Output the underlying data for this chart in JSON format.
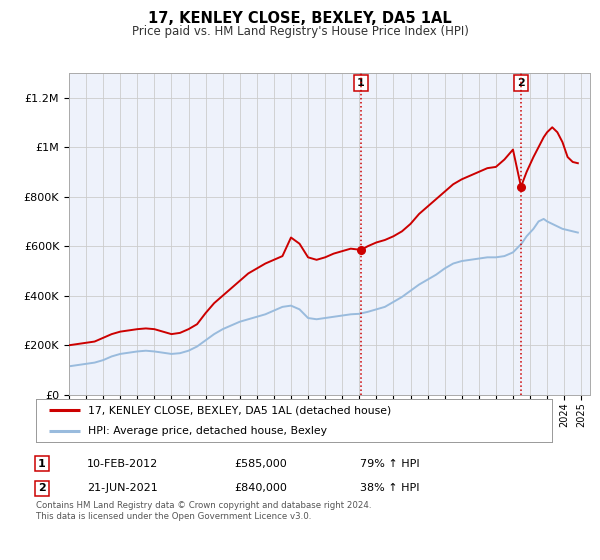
{
  "title": "17, KENLEY CLOSE, BEXLEY, DA5 1AL",
  "subtitle": "Price paid vs. HM Land Registry's House Price Index (HPI)",
  "ylim": [
    0,
    1300000
  ],
  "xlim_start": 1995.0,
  "xlim_end": 2025.5,
  "yticks": [
    0,
    200000,
    400000,
    600000,
    800000,
    1000000,
    1200000
  ],
  "ytick_labels": [
    "£0",
    "£200K",
    "£400K",
    "£600K",
    "£800K",
    "£1M",
    "£1.2M"
  ],
  "red_line_color": "#cc0000",
  "blue_line_color": "#99bbdd",
  "marker_color": "#cc0000",
  "annotation_color": "#cc0000",
  "grid_color": "#cccccc",
  "background_color": "#eef2fb",
  "legend_label_red": "17, KENLEY CLOSE, BEXLEY, DA5 1AL (detached house)",
  "legend_label_blue": "HPI: Average price, detached house, Bexley",
  "sale1_date": "10-FEB-2012",
  "sale1_price": "£585,000",
  "sale1_pct": "79% ↑ HPI",
  "sale1_x": 2012.1,
  "sale1_y": 585000,
  "sale2_date": "21-JUN-2021",
  "sale2_price": "£840,000",
  "sale2_pct": "38% ↑ HPI",
  "sale2_x": 2021.47,
  "sale2_y": 840000,
  "footer_line1": "Contains HM Land Registry data © Crown copyright and database right 2024.",
  "footer_line2": "This data is licensed under the Open Government Licence v3.0.",
  "red_x": [
    1995.0,
    1995.5,
    1996.0,
    1996.5,
    1997.0,
    1997.5,
    1998.0,
    1998.5,
    1999.0,
    1999.5,
    2000.0,
    2000.5,
    2001.0,
    2001.5,
    2002.0,
    2002.5,
    2003.0,
    2003.5,
    2004.0,
    2004.5,
    2005.0,
    2005.5,
    2006.0,
    2006.5,
    2007.0,
    2007.5,
    2008.0,
    2008.5,
    2009.0,
    2009.5,
    2010.0,
    2010.5,
    2011.0,
    2011.5,
    2012.1,
    2012.5,
    2013.0,
    2013.5,
    2014.0,
    2014.5,
    2015.0,
    2015.5,
    2016.0,
    2016.5,
    2017.0,
    2017.5,
    2018.0,
    2018.5,
    2019.0,
    2019.5,
    2020.0,
    2020.5,
    2021.0,
    2021.47,
    2021.8,
    2022.2,
    2022.5,
    2022.8,
    2023.0,
    2023.3,
    2023.6,
    2023.9,
    2024.2,
    2024.5,
    2024.8
  ],
  "red_y": [
    200000,
    205000,
    210000,
    215000,
    230000,
    245000,
    255000,
    260000,
    265000,
    268000,
    265000,
    255000,
    245000,
    250000,
    265000,
    285000,
    330000,
    370000,
    400000,
    430000,
    460000,
    490000,
    510000,
    530000,
    545000,
    560000,
    635000,
    610000,
    555000,
    545000,
    555000,
    570000,
    580000,
    590000,
    585000,
    600000,
    615000,
    625000,
    640000,
    660000,
    690000,
    730000,
    760000,
    790000,
    820000,
    850000,
    870000,
    885000,
    900000,
    915000,
    920000,
    950000,
    990000,
    840000,
    900000,
    960000,
    1000000,
    1040000,
    1060000,
    1080000,
    1060000,
    1020000,
    960000,
    940000,
    935000
  ],
  "blue_x": [
    1995.0,
    1995.5,
    1996.0,
    1996.5,
    1997.0,
    1997.5,
    1998.0,
    1998.5,
    1999.0,
    1999.5,
    2000.0,
    2000.5,
    2001.0,
    2001.5,
    2002.0,
    2002.5,
    2003.0,
    2003.5,
    2004.0,
    2004.5,
    2005.0,
    2005.5,
    2006.0,
    2006.5,
    2007.0,
    2007.5,
    2008.0,
    2008.5,
    2009.0,
    2009.5,
    2010.0,
    2010.5,
    2011.0,
    2011.5,
    2012.0,
    2012.5,
    2013.0,
    2013.5,
    2014.0,
    2014.5,
    2015.0,
    2015.5,
    2016.0,
    2016.5,
    2017.0,
    2017.5,
    2018.0,
    2018.5,
    2019.0,
    2019.5,
    2020.0,
    2020.5,
    2021.0,
    2021.5,
    2021.8,
    2022.2,
    2022.5,
    2022.8,
    2023.0,
    2023.3,
    2023.6,
    2023.9,
    2024.2,
    2024.5,
    2024.8
  ],
  "blue_y": [
    115000,
    120000,
    125000,
    130000,
    140000,
    155000,
    165000,
    170000,
    175000,
    178000,
    175000,
    170000,
    165000,
    168000,
    178000,
    195000,
    220000,
    245000,
    265000,
    280000,
    295000,
    305000,
    315000,
    325000,
    340000,
    355000,
    360000,
    345000,
    310000,
    305000,
    310000,
    315000,
    320000,
    325000,
    327000,
    335000,
    345000,
    355000,
    375000,
    395000,
    420000,
    445000,
    465000,
    485000,
    510000,
    530000,
    540000,
    545000,
    550000,
    555000,
    555000,
    560000,
    575000,
    610000,
    640000,
    670000,
    700000,
    710000,
    700000,
    690000,
    680000,
    670000,
    665000,
    660000,
    655000
  ]
}
